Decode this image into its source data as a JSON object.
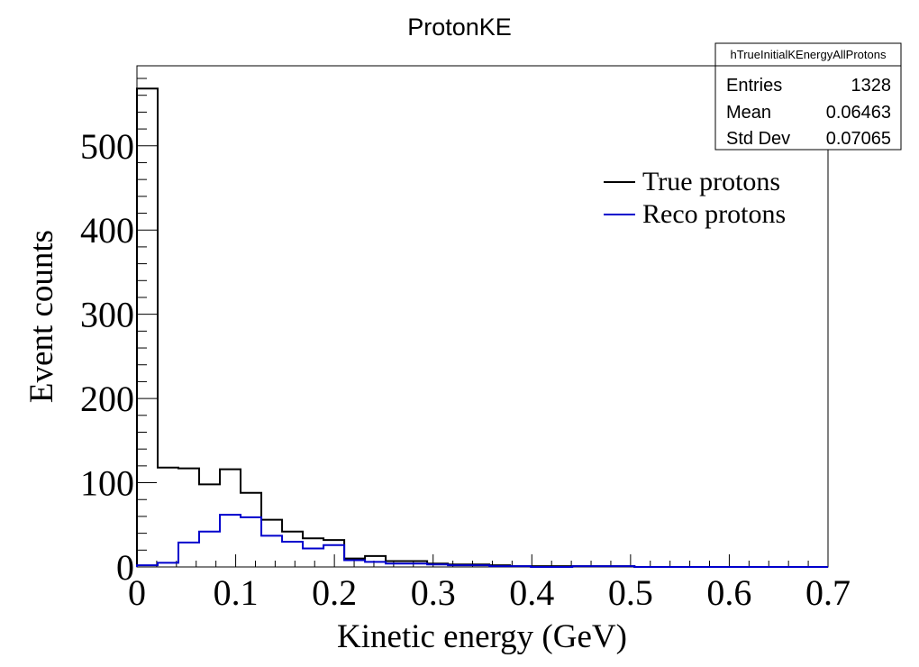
{
  "chart_data": {
    "type": "histogram",
    "title": "ProtonKE",
    "xlabel": "Kinetic energy (GeV)",
    "ylabel": "Event counts",
    "xlim": [
      0,
      0.7
    ],
    "ylim": [
      0,
      595
    ],
    "x_ticks": [
      "0",
      "0.1",
      "0.2",
      "0.3",
      "0.4",
      "0.5",
      "0.6",
      "0.7"
    ],
    "y_ticks": [
      "0",
      "100",
      "200",
      "300",
      "400",
      "500"
    ],
    "x_tick_values": [
      0,
      0.1,
      0.2,
      0.3,
      0.4,
      0.5,
      0.6,
      0.7
    ],
    "y_tick_values": [
      0,
      100,
      200,
      300,
      400,
      500
    ],
    "bin_edges": [
      0,
      0.021,
      0.042,
      0.063,
      0.084,
      0.105,
      0.126,
      0.147,
      0.168,
      0.189,
      0.21,
      0.231,
      0.252,
      0.273,
      0.294,
      0.315,
      0.336,
      0.357,
      0.378,
      0.399,
      0.42,
      0.441,
      0.462,
      0.483,
      0.504,
      0.525,
      0.546,
      0.567,
      0.588,
      0.609,
      0.63,
      0.651,
      0.672,
      0.7
    ],
    "series": [
      {
        "name": "True protons",
        "color": "#000000",
        "values": [
          568,
          118,
          117,
          98,
          116,
          88,
          56,
          42,
          34,
          32,
          10,
          13,
          7,
          7,
          4,
          3,
          3,
          2,
          1,
          1,
          1,
          1,
          1,
          1,
          0,
          0,
          0,
          0,
          0,
          0,
          0,
          0,
          0
        ]
      },
      {
        "name": "Reco protons",
        "color": "#0000cc",
        "values": [
          2,
          5,
          29,
          42,
          62,
          59,
          37,
          30,
          22,
          26,
          8,
          6,
          4,
          4,
          3,
          2,
          2,
          1,
          1,
          0,
          0,
          1,
          1,
          1,
          0,
          0,
          0,
          0,
          0,
          0,
          0,
          0,
          0
        ]
      }
    ],
    "legend": {
      "position": "top-right",
      "entries": [
        "True protons",
        "Reco protons"
      ]
    },
    "stats": {
      "name": "hTrueInitialKEnergyAllProtons",
      "rows": [
        {
          "label": "Entries",
          "value": "1328"
        },
        {
          "label": "Mean",
          "value": "0.06463"
        },
        {
          "label": "Std Dev",
          "value": "0.07065"
        }
      ]
    },
    "grid": false
  }
}
